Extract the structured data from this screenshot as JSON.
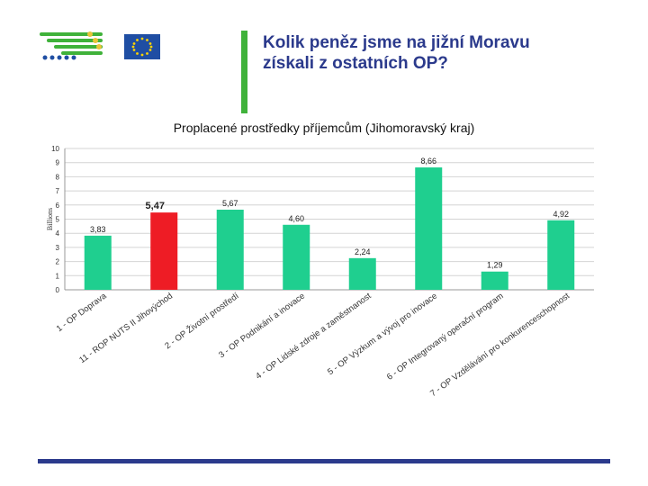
{
  "header": {
    "title": "Kolik peněz jsme na jižní Moravu\nzískali z ostatních OP?",
    "accent_color": "#3fb23a",
    "title_color": "#2b3a8c",
    "logo_left_icon": "wheat-logo-icon",
    "logo_right_icon": "eu-flag-icon"
  },
  "chart_data": {
    "type": "bar",
    "title": "Proplacené prostředky příjemcům (Jihomoravský kraj)",
    "ylabel": "Billions",
    "xlabel": "",
    "ylim": [
      0,
      10
    ],
    "yticks": [
      "0",
      "1",
      "2",
      "3",
      "4",
      "5",
      "6",
      "7",
      "8",
      "9",
      "10"
    ],
    "categories": [
      "1 - OP Doprava",
      "11 - ROP NUTS II Jihovýchod",
      "2 - OP Životní prostředí",
      "3 - OP Podnikání a inovace",
      "4 - OP Lidské zdroje a zaměstnanost",
      "5 - OP Výzkum a vývoj pro inovace",
      "6 - OP Integrovaný operační program",
      "7 - OP Vzdělávání pro konkurenceschopnost"
    ],
    "values": [
      3.83,
      5.47,
      5.67,
      4.6,
      2.24,
      8.66,
      1.29,
      4.92
    ],
    "value_labels": [
      "3,83",
      "5,47",
      "5,67",
      "4,60",
      "2,24",
      "8,66",
      "1,29",
      "4,92"
    ],
    "highlight_index": 1,
    "bar_color": "#1fcf8f",
    "highlight_color": "#ee1c25",
    "grid": true,
    "legend": "none"
  },
  "footer": {
    "bar_color": "#2b3a8c"
  }
}
